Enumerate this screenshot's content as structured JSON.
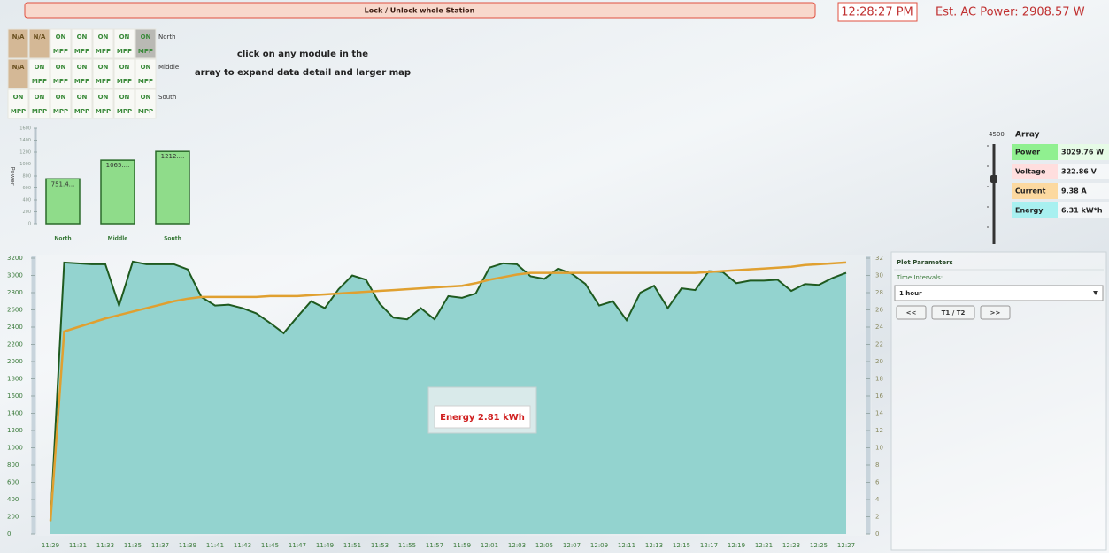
{
  "header": {
    "lock_button": "Lock / Unlock whole Station",
    "clock": "12:28:27 PM",
    "est_ac_power": "Est. AC Power: 2908.57 W"
  },
  "modules": {
    "rows": [
      {
        "label": "North",
        "cells": [
          {
            "status": "N/A"
          },
          {
            "status": "N/A"
          },
          {
            "status": "ON",
            "mode": "MPP"
          },
          {
            "status": "ON",
            "mode": "MPP"
          },
          {
            "status": "ON",
            "mode": "MPP"
          },
          {
            "status": "ON",
            "mode": "MPP"
          },
          {
            "status": "ON",
            "mode": "MPP",
            "selected": true
          }
        ]
      },
      {
        "label": "Middle",
        "cells": [
          {
            "status": "N/A"
          },
          {
            "status": "ON",
            "mode": "MPP"
          },
          {
            "status": "ON",
            "mode": "MPP"
          },
          {
            "status": "ON",
            "mode": "MPP"
          },
          {
            "status": "ON",
            "mode": "MPP"
          },
          {
            "status": "ON",
            "mode": "MPP"
          },
          {
            "status": "ON",
            "mode": "MPP"
          }
        ]
      },
      {
        "label": "South",
        "cells": [
          {
            "status": "ON",
            "mode": "MPP"
          },
          {
            "status": "ON",
            "mode": "MPP"
          },
          {
            "status": "ON",
            "mode": "MPP"
          },
          {
            "status": "ON",
            "mode": "MPP"
          },
          {
            "status": "ON",
            "mode": "MPP"
          },
          {
            "status": "ON",
            "mode": "MPP"
          },
          {
            "status": "ON",
            "mode": "MPP"
          }
        ]
      }
    ]
  },
  "instruction": [
    "click on any module in the",
    "array to expand data detail and larger map"
  ],
  "bar_chart": {
    "type": "bar",
    "y_label": "Power",
    "categories": [
      "North",
      "Middle",
      "South"
    ],
    "values": [
      751.4,
      1065,
      1212
    ],
    "value_labels": [
      "751.4...",
      "1065....",
      "1212...."
    ],
    "color": "#8fdc8a",
    "ylim": [
      0,
      1600
    ],
    "yticks": [
      0,
      200,
      400,
      600,
      800,
      1000,
      1200,
      1400,
      1600
    ]
  },
  "array_panel": {
    "slider_max": 4500,
    "title": "Array",
    "rows": [
      {
        "label": "Power",
        "value": "3029.76 W"
      },
      {
        "label": "Voltage",
        "value": "322.86 V"
      },
      {
        "label": "Current",
        "value": "9.38 A"
      },
      {
        "label": "Energy",
        "value": "6.31 kW*h"
      }
    ]
  },
  "main_chart": {
    "type": "area",
    "categories": [
      "11:29",
      null,
      "11:31",
      null,
      "11:33",
      null,
      "11:35",
      null,
      "11:37",
      null,
      "11:39",
      null,
      "11:41",
      null,
      "11:43",
      null,
      "11:45",
      null,
      "11:47",
      null,
      "11:49",
      null,
      "11:51",
      null,
      "11:53",
      null,
      "11:55",
      null,
      "11:57",
      null,
      "11:59",
      null,
      "12:01",
      null,
      "12:03",
      null,
      "12:05",
      null,
      "12:07",
      null,
      "12:09",
      null,
      "12:11",
      null,
      "12:13",
      null,
      "12:15",
      null,
      "12:17",
      null,
      "12:19",
      null,
      "12:21",
      null,
      "12:23",
      null,
      "12:25",
      null,
      "12:27"
    ],
    "series": [
      {
        "color": "#1f5a1f",
        "fill": "#93d3cf",
        "values": [
          150,
          3150,
          3140,
          3130,
          3130,
          2650,
          3160,
          3130,
          3130,
          3130,
          3070,
          2750,
          2650,
          2660,
          2620,
          2560,
          2450,
          2330,
          2520,
          2700,
          2620,
          2840,
          3000,
          2950,
          2670,
          2510,
          2490,
          2620,
          2490,
          2760,
          2740,
          2790,
          3090,
          3140,
          3130,
          2990,
          2960,
          3080,
          3020,
          2900,
          2650,
          2700,
          2480,
          2800,
          2880,
          2620,
          2850,
          2830,
          3050,
          3040,
          2910,
          2940,
          2940,
          2950,
          2820,
          2900,
          2890,
          2970,
          3030
        ]
      },
      {
        "color": "#e0a030",
        "axis": "y2",
        "values": [
          1.5,
          23.5,
          24.0,
          24.5,
          25.0,
          25.4,
          25.8,
          26.2,
          26.6,
          27.0,
          27.3,
          27.5,
          27.5,
          27.5,
          27.5,
          27.5,
          27.6,
          27.6,
          27.6,
          27.7,
          27.8,
          27.9,
          28.0,
          28.1,
          28.2,
          28.3,
          28.4,
          28.5,
          28.6,
          28.7,
          28.8,
          29.1,
          29.5,
          29.8,
          30.1,
          30.3,
          30.3,
          30.3,
          30.3,
          30.3,
          30.3,
          30.3,
          30.3,
          30.3,
          30.3,
          30.3,
          30.3,
          30.3,
          30.4,
          30.5,
          30.6,
          30.7,
          30.8,
          30.9,
          31.0,
          31.2,
          31.3,
          31.4,
          31.5
        ]
      }
    ],
    "ylim": [
      0,
      3200
    ],
    "yticks": [
      0,
      200,
      400,
      600,
      800,
      1000,
      1200,
      1400,
      1600,
      1800,
      2000,
      2200,
      2400,
      2600,
      2800,
      3000,
      3200
    ],
    "y2lim": [
      0,
      32
    ],
    "y2ticks": [
      0,
      2,
      4,
      6,
      8,
      10,
      12,
      14,
      16,
      18,
      20,
      22,
      24,
      26,
      28,
      30,
      32
    ],
    "annotation": "Energy 2.81 kWh"
  },
  "plot_parameters": {
    "title": "Plot Parameters",
    "time_intervals_label": "Time Intervals:",
    "selected_interval": "1 hour",
    "buttons": [
      "<<",
      "T1 / T2",
      ">>"
    ]
  }
}
